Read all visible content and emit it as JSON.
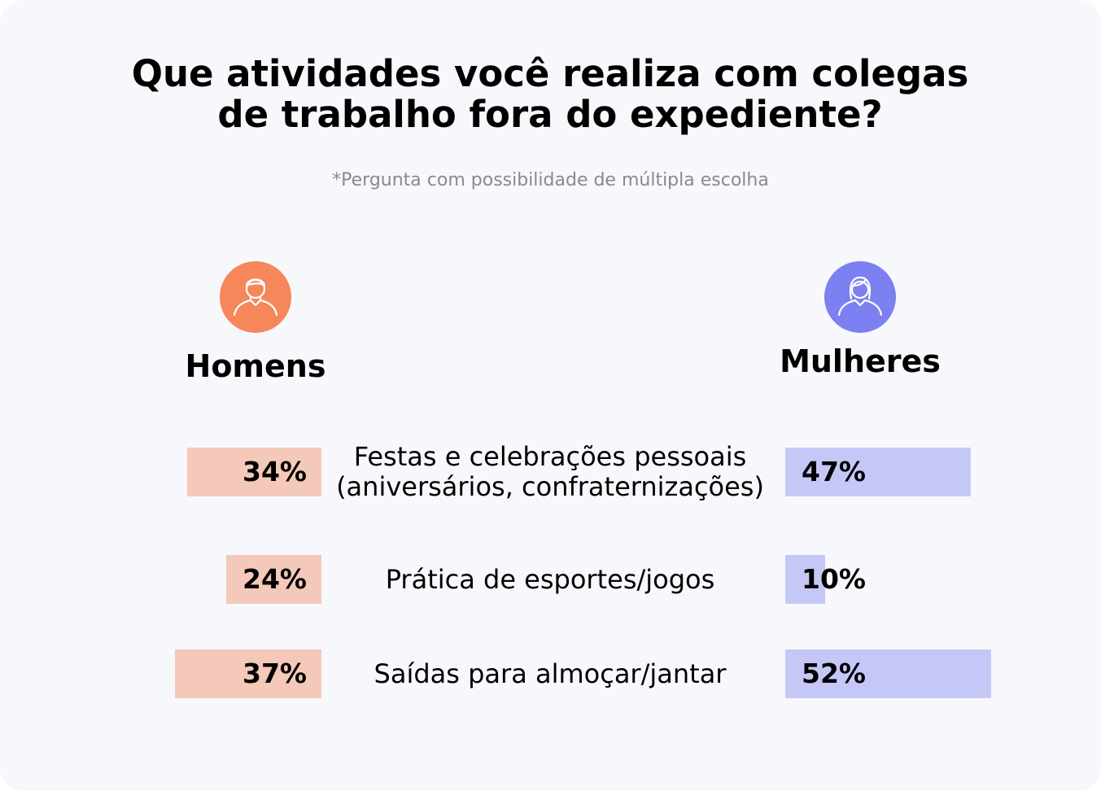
{
  "chart_data": {
    "type": "butterfly-bar",
    "title": "Que atividades você realiza com colegas de trabalho fora do expediente?",
    "subtitle": "*Pergunta com possibilidade de múltipla escolha",
    "categories": [
      "Festas e celebrações pessoais (aniversários, confraternizações)",
      "Prática de esportes/jogos",
      "Saídas para almoçar/jantar"
    ],
    "series": [
      {
        "name": "Homens",
        "color": "#f5c9b9",
        "icon_color": "#f5875a",
        "values": [
          34,
          24,
          37
        ],
        "value_labels": [
          "34%",
          "24%",
          "37%"
        ]
      },
      {
        "name": "Mulheres",
        "color": "#c5c8f7",
        "icon_color": "#7d80f0",
        "values": [
          47,
          10,
          52
        ],
        "value_labels": [
          "47%",
          "10%",
          "52%"
        ]
      }
    ]
  }
}
